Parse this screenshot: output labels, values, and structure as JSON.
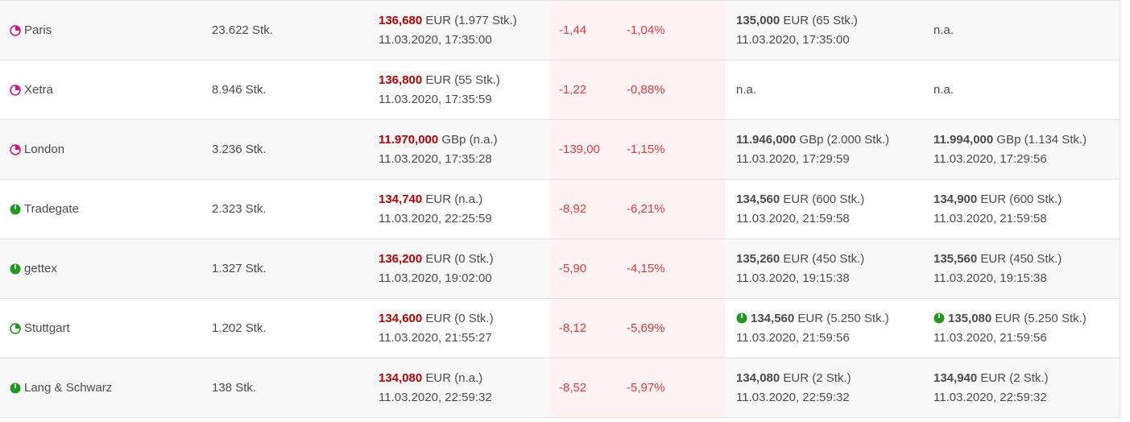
{
  "colors": {
    "pink": "#d4148a",
    "green": "#1e9a1e",
    "red": "#b30000",
    "change_red": "#e03a3a"
  },
  "rows": [
    {
      "venue": "Paris",
      "status_icon": "clock-pink-icon",
      "volume": "23.622 Stk.",
      "last_price": "136,680",
      "last_unit": "EUR (1.977 Stk.)",
      "last_time": "11.03.2020, 17:35:00",
      "change": "-1,44",
      "change_pct": "-1,04%",
      "bid_price": "135,000",
      "bid_unit": "EUR (65 Stk.)",
      "bid_time": "11.03.2020, 17:35:00",
      "ask_na": "n.a."
    },
    {
      "venue": "Xetra",
      "status_icon": "clock-pink-icon",
      "volume": "8.946 Stk.",
      "last_price": "136,800",
      "last_unit": "EUR (55 Stk.)",
      "last_time": "11.03.2020, 17:35:59",
      "change": "-1,22",
      "change_pct": "-0,88%",
      "bid_na": "n.a.",
      "ask_na": "n.a."
    },
    {
      "venue": "London",
      "status_icon": "clock-pink-icon",
      "volume": "3.236 Stk.",
      "last_price": "11.970,000",
      "last_unit": "GBp (n.a.)",
      "last_time": "11.03.2020, 17:35:28",
      "change": "-139,00",
      "change_pct": "-1,15%",
      "bid_price": "11.946,000",
      "bid_unit": "GBp (2.000 Stk.)",
      "bid_time": "11.03.2020, 17:29:59",
      "ask_price": "11.994,000",
      "ask_unit": "GBp (1.134 Stk.)",
      "ask_time": "11.03.2020, 17:29:56"
    },
    {
      "venue": "Tradegate",
      "status_icon": "clock-green-icon",
      "volume": "2.323 Stk.",
      "last_price": "134,740",
      "last_unit": "EUR (n.a.)",
      "last_time": "11.03.2020, 22:25:59",
      "change": "-8,92",
      "change_pct": "-6,21%",
      "bid_price": "134,560",
      "bid_unit": "EUR (600 Stk.)",
      "bid_time": "11.03.2020, 21:59:58",
      "ask_price": "134,900",
      "ask_unit": "EUR (600 Stk.)",
      "ask_time": "11.03.2020, 21:59:58"
    },
    {
      "venue": "gettex",
      "status_icon": "clock-green-icon",
      "volume": "1.327 Stk.",
      "last_price": "136,200",
      "last_unit": "EUR (0 Stk.)",
      "last_time": "11.03.2020, 19:02:00",
      "change": "-5,90",
      "change_pct": "-4,15%",
      "bid_price": "135,260",
      "bid_unit": "EUR (450 Stk.)",
      "bid_time": "11.03.2020, 19:15:38",
      "ask_price": "135,560",
      "ask_unit": "EUR (450 Stk.)",
      "ask_time": "11.03.2020, 19:15:38"
    },
    {
      "venue": "Stuttgart",
      "status_icon": "clock-green-icon",
      "volume": "1.202 Stk.",
      "last_price": "134,600",
      "last_unit": "EUR (0 Stk.)",
      "last_time": "11.03.2020, 21:55:27",
      "change": "-8,12",
      "change_pct": "-5,69%",
      "bid_price": "134,560",
      "bid_unit": "EUR (5.250 Stk.)",
      "bid_time": "11.03.2020, 21:59:56",
      "ask_price": "135,080",
      "ask_unit": "EUR (5.250 Stk.)",
      "ask_time": "11.03.2020, 21:59:56"
    },
    {
      "venue": "Lang & Schwarz",
      "status_icon": "clock-green-icon",
      "volume": "138 Stk.",
      "last_price": "134,080",
      "last_unit": "EUR (n.a.)",
      "last_time": "11.03.2020, 22:59:32",
      "change": "-8,52",
      "change_pct": "-5,97%",
      "bid_price": "134,080",
      "bid_unit": "EUR (2 Stk.)",
      "bid_time": "11.03.2020, 22:59:32",
      "ask_price": "134,940",
      "ask_unit": "EUR (2 Stk.)",
      "ask_time": "11.03.2020, 22:59:32"
    }
  ]
}
